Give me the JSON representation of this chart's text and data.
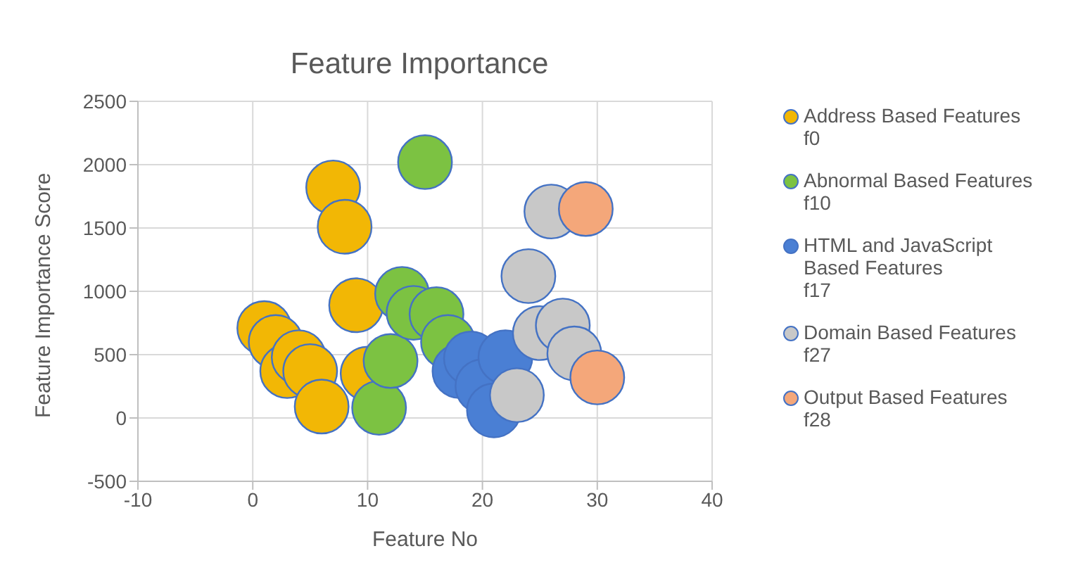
{
  "chart_data": {
    "type": "bubble",
    "title": "Feature Importance",
    "xlabel": "Feature No",
    "ylabel": "Feature Importance Score",
    "xlim": [
      -10,
      40
    ],
    "xticks": [
      -10,
      0,
      10,
      20,
      30,
      40
    ],
    "ylim": [
      -500,
      2500
    ],
    "yticks": [
      -500,
      0,
      500,
      1000,
      1500,
      2000,
      2500
    ],
    "grid": true,
    "legend": "right",
    "series": [
      {
        "name": "Address Based Features f0",
        "color": "#f2b705",
        "x": [
          1,
          2,
          3,
          4,
          5,
          6,
          7,
          8,
          9,
          10
        ],
        "values": [
          710,
          600,
          370,
          480,
          370,
          90,
          1820,
          1510,
          890,
          350
        ],
        "sizes": [
          1,
          1,
          1,
          1,
          1,
          1,
          1,
          1,
          1,
          1
        ]
      },
      {
        "name": "Abnormal Based Features f10",
        "color": "#7cc242",
        "x": [
          11,
          12,
          13,
          14,
          15,
          16,
          17
        ],
        "values": [
          80,
          450,
          980,
          830,
          2020,
          820,
          600
        ],
        "sizes": [
          1,
          1,
          1,
          1,
          1,
          1,
          1
        ]
      },
      {
        "name": "HTML and JavaScript Based Features f17",
        "color": "#4a7fd4",
        "x": [
          18,
          19,
          20,
          21,
          22
        ],
        "values": [
          370,
          470,
          250,
          60,
          480
        ],
        "sizes": [
          1,
          1,
          1,
          1,
          1
        ]
      },
      {
        "name": "Domain Based Features f27",
        "color": "#c8c8c8",
        "x": [
          23,
          24,
          25,
          26,
          27,
          28
        ],
        "values": [
          180,
          1120,
          670,
          1630,
          730,
          510
        ],
        "sizes": [
          1,
          1,
          1,
          1,
          1,
          1
        ]
      },
      {
        "name": "Output Based Features f28",
        "color": "#f4a77a",
        "x": [
          29,
          30
        ],
        "values": [
          1650,
          320
        ],
        "sizes": [
          1,
          1
        ]
      }
    ]
  }
}
